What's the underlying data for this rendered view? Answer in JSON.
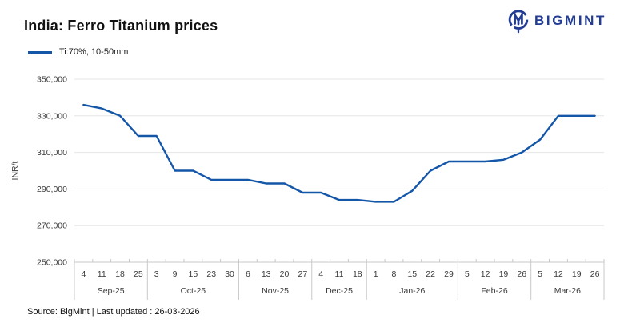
{
  "header": {
    "title": "India: Ferro Titanium prices",
    "brand": "BIGMINT"
  },
  "footer": {
    "source": "Source: BigMint | Last updated : 26-03-2026"
  },
  "colors": {
    "line": "#1456a8",
    "brand": "#223c92",
    "grid": "#e6e6e6",
    "axis": "#c9c9c9",
    "text": "#3a3a3a"
  },
  "chart_data": {
    "type": "line",
    "title": "India: Ferro Titanium prices",
    "ylabel": "INR/t",
    "ylim": [
      250000,
      350000
    ],
    "ytick_step": 20000,
    "ytick_labels": [
      "250,000",
      "270,000",
      "290,000",
      "310,000",
      "330,000",
      "350,000"
    ],
    "grid": true,
    "legend_position": "top-left",
    "groups": [
      {
        "label": "Sep-25",
        "ticks": [
          "4",
          "11",
          "18",
          "25"
        ]
      },
      {
        "label": "Oct-25",
        "ticks": [
          "3",
          "9",
          "15",
          "23",
          "30"
        ]
      },
      {
        "label": "Nov-25",
        "ticks": [
          "6",
          "13",
          "20",
          "27"
        ]
      },
      {
        "label": "Dec-25",
        "ticks": [
          "4",
          "11",
          "18"
        ]
      },
      {
        "label": "Jan-26",
        "ticks": [
          "1",
          "8",
          "15",
          "22",
          "29"
        ]
      },
      {
        "label": "Feb-26",
        "ticks": [
          "5",
          "12",
          "19",
          "26"
        ]
      },
      {
        "label": "Mar-26",
        "ticks": [
          "5",
          "12",
          "19",
          "26"
        ]
      }
    ],
    "series": [
      {
        "name": "Ti:70%, 10-50mm",
        "color": "#1456a8",
        "values": [
          336000,
          334000,
          330000,
          319000,
          319000,
          300000,
          300000,
          295000,
          295000,
          295000,
          293000,
          293000,
          288000,
          288000,
          284000,
          284000,
          283000,
          283000,
          289000,
          300000,
          305000,
          305000,
          305000,
          306000,
          310000,
          317000,
          330000,
          330000,
          330000
        ]
      }
    ]
  }
}
